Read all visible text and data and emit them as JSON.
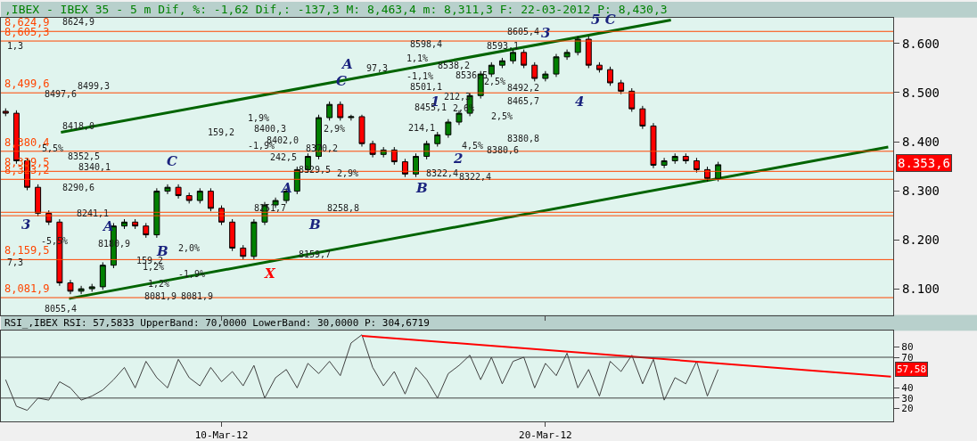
{
  "chart_data": [
    {
      "type": "candlestick",
      "title": ",IBEX - IBEX 35 - 5 m Dif, %: -1,62 Dif,: -137,3 M: 8,463,4 m: 8,311,3 F: 22-03-2012 P: 8,430,3",
      "x": [
        "2012-03-03T08:00",
        "2012-03-03T16:00",
        "2012-03-04T00:00",
        "2012-03-04T08:00",
        "2012-03-04T16:00",
        "2012-03-05T00:00",
        "2012-03-05T08:00",
        "2012-03-05T16:00",
        "2012-03-06T00:00",
        "2012-03-06T08:00",
        "2012-03-06T16:00",
        "2012-03-07T00:00",
        "2012-03-07T08:00",
        "2012-03-07T16:00",
        "2012-03-08T00:00",
        "2012-03-08T08:00",
        "2012-03-08T16:00",
        "2012-03-09T00:00",
        "2012-03-09T08:00",
        "2012-03-09T16:00",
        "2012-03-10T00:00",
        "2012-03-10T08:00",
        "2012-03-10T16:00",
        "2012-03-11T00:00",
        "2012-03-11T08:00",
        "2012-03-11T16:00",
        "2012-03-12T00:00",
        "2012-03-12T08:00",
        "2012-03-12T16:00",
        "2012-03-13T00:00",
        "2012-03-13T08:00",
        "2012-03-13T16:00",
        "2012-03-14T00:00",
        "2012-03-14T08:00",
        "2012-03-14T16:00",
        "2012-03-15T00:00",
        "2012-03-15T08:00",
        "2012-03-15T16:00",
        "2012-03-16T00:00",
        "2012-03-16T08:00",
        "2012-03-16T16:00",
        "2012-03-17T00:00",
        "2012-03-17T08:00",
        "2012-03-17T16:00",
        "2012-03-18T00:00",
        "2012-03-18T08:00",
        "2012-03-18T16:00",
        "2012-03-19T00:00",
        "2012-03-19T08:00",
        "2012-03-19T16:00",
        "2012-03-20T00:00",
        "2012-03-20T08:00",
        "2012-03-20T16:00",
        "2012-03-21T00:00",
        "2012-03-21T08:00",
        "2012-03-21T16:00",
        "2012-03-22T00:00",
        "2012-03-22T08:00",
        "2012-03-22T16:00",
        "2012-03-23T00:00",
        "2012-03-23T08:00",
        "2012-03-23T16:00",
        "2012-03-24T00:00",
        "2012-03-24T08:00",
        "2012-03-24T16:00",
        "2012-03-25T00:00",
        "2012-03-25T08:00"
      ],
      "ohlc": [
        [
          8462,
          8468,
          8452,
          8458
        ],
        [
          8458,
          8464,
          8355,
          8361
        ],
        [
          8361,
          8367,
          8301,
          8307
        ],
        [
          8307,
          8313,
          8248,
          8254
        ],
        [
          8254,
          8260,
          8230,
          8236
        ],
        [
          8236,
          8242,
          8106,
          8112
        ],
        [
          8112,
          8118,
          8089,
          8095
        ],
        [
          8095,
          8106,
          8089,
          8100
        ],
        [
          8100,
          8110,
          8094,
          8104
        ],
        [
          8104,
          8154,
          8098,
          8148
        ],
        [
          8148,
          8234,
          8142,
          8228
        ],
        [
          8228,
          8242,
          8222,
          8236
        ],
        [
          8236,
          8242,
          8222,
          8228
        ],
        [
          8228,
          8234,
          8204,
          8210
        ],
        [
          8210,
          8305,
          8204,
          8299
        ],
        [
          8299,
          8313,
          8293,
          8307
        ],
        [
          8307,
          8313,
          8284,
          8290
        ],
        [
          8290,
          8296,
          8274,
          8280
        ],
        [
          8280,
          8305,
          8274,
          8299
        ],
        [
          8299,
          8305,
          8258,
          8264
        ],
        [
          8264,
          8270,
          8230,
          8236
        ],
        [
          8236,
          8242,
          8177,
          8183
        ],
        [
          8183,
          8189,
          8160,
          8166
        ],
        [
          8166,
          8242,
          8160,
          8236
        ],
        [
          8236,
          8277,
          8230,
          8271
        ],
        [
          8271,
          8286,
          8265,
          8280
        ],
        [
          8280,
          8305,
          8274,
          8299
        ],
        [
          8299,
          8349,
          8293,
          8343
        ],
        [
          8343,
          8376,
          8337,
          8370
        ],
        [
          8370,
          8455,
          8364,
          8449
        ],
        [
          8449,
          8482,
          8443,
          8476
        ],
        [
          8476,
          8482,
          8443,
          8449
        ],
        [
          8449,
          8455,
          8443,
          8451
        ],
        [
          8451,
          8455,
          8390,
          8396
        ],
        [
          8396,
          8402,
          8368,
          8374
        ],
        [
          8374,
          8389,
          8368,
          8383
        ],
        [
          8383,
          8389,
          8353,
          8359
        ],
        [
          8359,
          8365,
          8328,
          8334
        ],
        [
          8334,
          8376,
          8328,
          8370
        ],
        [
          8370,
          8402,
          8364,
          8396
        ],
        [
          8396,
          8420,
          8390,
          8414
        ],
        [
          8414,
          8446,
          8408,
          8440
        ],
        [
          8440,
          8464,
          8434,
          8458
        ],
        [
          8458,
          8500,
          8452,
          8494
        ],
        [
          8494,
          8544,
          8488,
          8538
        ],
        [
          8538,
          8562,
          8532,
          8556
        ],
        [
          8556,
          8571,
          8550,
          8565
        ],
        [
          8565,
          8588,
          8559,
          8582
        ],
        [
          8582,
          8588,
          8550,
          8556
        ],
        [
          8556,
          8562,
          8523,
          8529
        ],
        [
          8529,
          8544,
          8523,
          8538
        ],
        [
          8538,
          8579,
          8532,
          8573
        ],
        [
          8573,
          8588,
          8567,
          8582
        ],
        [
          8582,
          8615,
          8576,
          8609
        ],
        [
          8609,
          8615,
          8550,
          8556
        ],
        [
          8556,
          8562,
          8541,
          8547
        ],
        [
          8547,
          8553,
          8514,
          8520
        ],
        [
          8520,
          8526,
          8497,
          8503
        ],
        [
          8503,
          8509,
          8461,
          8467
        ],
        [
          8467,
          8473,
          8426,
          8432
        ],
        [
          8432,
          8438,
          8346,
          8352
        ],
        [
          8352,
          8367,
          8346,
          8361
        ],
        [
          8361,
          8376,
          8355,
          8370
        ],
        [
          8370,
          8376,
          8355,
          8361
        ],
        [
          8361,
          8367,
          8337,
          8343
        ],
        [
          8343,
          8349,
          8319,
          8325
        ],
        [
          8325,
          8359,
          8319,
          8353
        ]
      ],
      "series": [
        {
          "type": "line",
          "color": "#006400",
          "x": [
            "2012-03-05T01:00",
            "2012-03-23T21:00"
          ],
          "values": [
            8419,
            8648
          ]
        },
        {
          "type": "line",
          "color": "#006400",
          "x": [
            "2012-03-05T07:00",
            "2012-03-30T14:00"
          ],
          "values": [
            8080,
            8389
          ]
        }
      ],
      "xlim": [
        "2012-03-03T04:30",
        "2012-03-30T17:45"
      ],
      "ylim": [
        8045,
        8653
      ],
      "xticks": [
        {
          "value": "2012-03-10",
          "label": null
        },
        {
          "value": "2012-03-20",
          "label": null
        }
      ],
      "yticks": [
        {
          "value": 8100,
          "label": "8.100"
        },
        {
          "value": 8200,
          "label": "8.200"
        },
        {
          "value": 8300,
          "label": "8.300"
        },
        {
          "value": 8400,
          "label": "8.400"
        },
        {
          "value": 8500,
          "label": "8.500"
        },
        {
          "value": 8600,
          "label": "8.600"
        }
      ],
      "tick_labels": "y",
      "grid": false,
      "ref_lines": [
        {
          "axis": "y",
          "value": 8624.9,
          "label": "8,624,9",
          "color": "#ff4500"
        },
        {
          "axis": "y",
          "value": 8605.3,
          "label": "8,605,3",
          "color": "#ff4500"
        },
        {
          "axis": "y",
          "value": 8499.6,
          "label": "8,499,6",
          "color": "#ff4500"
        },
        {
          "axis": "y",
          "value": 8380.4,
          "label": "8,380,4",
          "color": "#ff4500"
        },
        {
          "axis": "y",
          "value": 8339.5,
          "label": "8,339,5",
          "color": "#ff4500"
        },
        {
          "axis": "y",
          "value": 8323.2,
          "label": "8,323,2",
          "color": "#ff4500"
        },
        {
          "axis": "y",
          "value": 8256,
          "label": null,
          "color": "#ff4500"
        },
        {
          "axis": "y",
          "value": 8249,
          "label": null,
          "color": "#ff4500"
        },
        {
          "axis": "y",
          "value": 8159.5,
          "label": "8,159,5",
          "color": "#ff4500"
        },
        {
          "axis": "y",
          "value": 8081.9,
          "label": "8,081,9",
          "color": "#ff4500"
        }
      ],
      "annotations": [
        "8.353,6",
        "3",
        "C",
        "A",
        "B",
        "X",
        "A",
        "B",
        "C",
        "A",
        "B",
        "1",
        "2",
        "3",
        "4",
        "5 C",
        "8624,9",
        "8499,3",
        "8497,6",
        "8418,0",
        "8352,5",
        "8340,1",
        "8290,6",
        "8241,1",
        "8180,9",
        "8081,9",
        "8081,9",
        "8055,4",
        "159,2",
        "159,2",
        "1,9%",
        "-1,9%",
        "2,0%",
        "-1,9%",
        "1,2%",
        "1,2%",
        "-5,5%",
        "5,5%",
        "1,3",
        "7,3",
        "8400,3",
        "8402,0",
        "242,5",
        "8370,2",
        "8329,5",
        "2,9%",
        "2,9%",
        "8258,8",
        "8251,7",
        "8159,7",
        "8501,1",
        "8598,4",
        "97,3",
        "1,1%",
        "-1,1%",
        "8538,2",
        "8536,5",
        "212,3",
        "2,6%",
        "8455,1",
        "214,1",
        "4,5%",
        "8322,4",
        "8322,4",
        "2,5%",
        "2,5%",
        "8593,1",
        "8380,6",
        "8380,8",
        "8492,2",
        "8465,7",
        "8605,4"
      ]
    },
    {
      "type": "line",
      "title": "RSI_,IBEX RSI: 57,5833 UpperBand: 70,0000 LowerBand: 30,0000 P: 304,6719",
      "x": [
        "2012-03-03T08:00",
        "2012-03-03T16:00",
        "2012-03-04T00:00",
        "2012-03-04T08:00",
        "2012-03-04T16:00",
        "2012-03-05T00:00",
        "2012-03-05T08:00",
        "2012-03-05T16:00",
        "2012-03-06T00:00",
        "2012-03-06T08:00",
        "2012-03-06T16:00",
        "2012-03-07T00:00",
        "2012-03-07T08:00",
        "2012-03-07T16:00",
        "2012-03-08T00:00",
        "2012-03-08T08:00",
        "2012-03-08T16:00",
        "2012-03-09T00:00",
        "2012-03-09T08:00",
        "2012-03-09T16:00",
        "2012-03-10T00:00",
        "2012-03-10T08:00",
        "2012-03-10T16:00",
        "2012-03-11T00:00",
        "2012-03-11T08:00",
        "2012-03-11T16:00",
        "2012-03-12T00:00",
        "2012-03-12T08:00",
        "2012-03-12T16:00",
        "2012-03-13T00:00",
        "2012-03-13T08:00",
        "2012-03-13T16:00",
        "2012-03-14T00:00",
        "2012-03-14T08:00",
        "2012-03-14T16:00",
        "2012-03-15T00:00",
        "2012-03-15T08:00",
        "2012-03-15T16:00",
        "2012-03-16T00:00",
        "2012-03-16T08:00",
        "2012-03-16T16:00",
        "2012-03-17T00:00",
        "2012-03-17T08:00",
        "2012-03-17T16:00",
        "2012-03-18T00:00",
        "2012-03-18T08:00",
        "2012-03-18T16:00",
        "2012-03-19T00:00",
        "2012-03-19T08:00",
        "2012-03-19T16:00",
        "2012-03-20T00:00",
        "2012-03-20T08:00",
        "2012-03-20T16:00",
        "2012-03-21T00:00",
        "2012-03-21T08:00",
        "2012-03-21T16:00",
        "2012-03-22T00:00",
        "2012-03-22T08:00",
        "2012-03-22T16:00",
        "2012-03-23T00:00",
        "2012-03-23T08:00",
        "2012-03-23T16:00",
        "2012-03-24T00:00",
        "2012-03-24T08:00",
        "2012-03-24T16:00",
        "2012-03-25T00:00",
        "2012-03-25T08:00"
      ],
      "series": [
        {
          "color": "#404040",
          "values": [
            48,
            22,
            18,
            30,
            28,
            46,
            40,
            28,
            32,
            38,
            48,
            60,
            40,
            66,
            50,
            40,
            68,
            50,
            42,
            60,
            46,
            56,
            42,
            62,
            30,
            50,
            58,
            40,
            64,
            54,
            66,
            52,
            84,
            92,
            60,
            42,
            56,
            34,
            60,
            48,
            30,
            54,
            62,
            72,
            48,
            70,
            44,
            66,
            70,
            40,
            64,
            52,
            74,
            40,
            58,
            32,
            66,
            56,
            72,
            44,
            68,
            28,
            50,
            44,
            66,
            32,
            58
          ]
        },
        {
          "color": "#ff0000",
          "x": [
            "2012-03-14T08:00",
            "2012-03-30T16:00"
          ],
          "values": [
            91,
            51
          ]
        }
      ],
      "xlim": [
        "2012-03-03T04:30",
        "2012-03-30T17:45"
      ],
      "ylim": [
        7,
        96
      ],
      "xticks": [
        {
          "value": "2012-03-10",
          "label": "10-Mar-12"
        },
        {
          "value": "2012-03-20",
          "label": "20-Mar-12"
        }
      ],
      "yticks": [
        20,
        30,
        40,
        70,
        80
      ],
      "ref_lines": [
        {
          "axis": "y",
          "value": 70,
          "label": null,
          "color": "#404040"
        },
        {
          "axis": "y",
          "value": 30,
          "label": null,
          "color": "#404040"
        }
      ],
      "annotations": [
        "57,58"
      ],
      "grid": false
    }
  ]
}
